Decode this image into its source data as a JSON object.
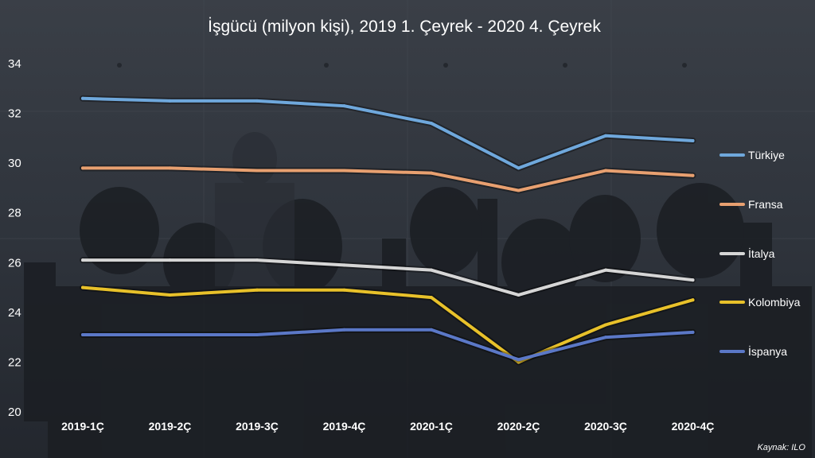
{
  "chart_data": {
    "type": "line",
    "title": "İşgücü (milyon kişi), 2019 1. Çeyrek - 2020 4. Çeyrek",
    "categories": [
      "2019-1Ç",
      "2019-2Ç",
      "2019-3Ç",
      "2019-4Ç",
      "2020-1Ç",
      "2020-2Ç",
      "2020-3Ç",
      "2020-4Ç"
    ],
    "yticks": [
      "20",
      "22",
      "24",
      "26",
      "28",
      "30",
      "32",
      "34"
    ],
    "ylim": [
      20,
      34
    ],
    "grid": false,
    "legend_position": "right",
    "series": [
      {
        "name": "Türkiye",
        "color": "#6fa8dc",
        "values": [
          32.6,
          32.5,
          32.5,
          32.3,
          31.6,
          29.8,
          31.1,
          30.9
        ]
      },
      {
        "name": "Fransa",
        "color": "#e8a070",
        "values": [
          29.8,
          29.8,
          29.7,
          29.7,
          29.6,
          28.9,
          29.7,
          29.5
        ]
      },
      {
        "name": "İtalya",
        "color": "#d6d6d6",
        "values": [
          26.1,
          26.1,
          26.1,
          25.9,
          25.7,
          24.7,
          25.7,
          25.3
        ]
      },
      {
        "name": "Kolombiya",
        "color": "#e8c12a",
        "values": [
          25.0,
          24.7,
          24.9,
          24.9,
          24.6,
          22.0,
          23.5,
          24.5
        ]
      },
      {
        "name": "İspanya",
        "color": "#5b78c7",
        "values": [
          23.1,
          23.1,
          23.1,
          23.3,
          23.3,
          22.1,
          23.0,
          23.2
        ]
      }
    ],
    "source": "Kaynak: ILO"
  }
}
